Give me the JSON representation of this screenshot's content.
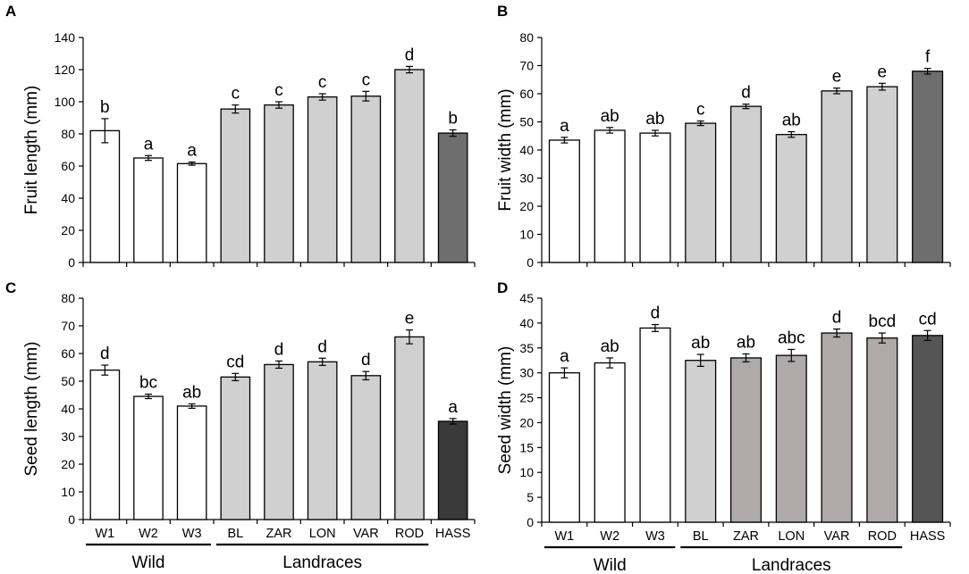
{
  "chart_data": [
    {
      "type": "bar",
      "panel": "A",
      "ylabel": "Fruit length (mm)",
      "ylim": [
        0,
        140
      ],
      "yticks": [
        0,
        20,
        40,
        60,
        80,
        100,
        120,
        140
      ],
      "categories": [
        "W1",
        "W2",
        "W3",
        "BL",
        "ZAR",
        "LON",
        "VAR",
        "ROD",
        "HASS"
      ],
      "values": [
        82,
        65,
        61.5,
        95.5,
        98,
        103,
        103.5,
        120,
        80.5
      ],
      "errors": [
        7.5,
        1.5,
        1,
        2.5,
        2,
        2,
        3,
        2,
        2
      ],
      "letters": [
        "b",
        "a",
        "a",
        "c",
        "c",
        "c",
        "c",
        "d",
        "b"
      ],
      "fill": [
        "#ffffff",
        "#ffffff",
        "#ffffff",
        "#d0d0d0",
        "#d0d0d0",
        "#d0d0d0",
        "#d0d0d0",
        "#d0d0d0",
        "#6e6e6e"
      ],
      "show_xticks": false,
      "groups": [
        {
          "label": "Wild",
          "from": 0,
          "to": 2
        },
        {
          "label": "Landraces",
          "from": 3,
          "to": 7
        }
      ],
      "show_groups": false
    },
    {
      "type": "bar",
      "panel": "B",
      "ylabel": "Fruit width (mm)",
      "ylim": [
        0,
        80
      ],
      "yticks": [
        0,
        10,
        20,
        30,
        40,
        50,
        60,
        70,
        80
      ],
      "categories": [
        "W1",
        "W2",
        "W3",
        "BL",
        "ZAR",
        "LON",
        "VAR",
        "ROD",
        "HASS"
      ],
      "values": [
        43.5,
        47,
        46,
        49.5,
        55.5,
        45.5,
        61,
        62.5,
        68
      ],
      "errors": [
        1,
        1,
        1,
        0.8,
        0.8,
        1,
        1,
        1.2,
        1
      ],
      "letters": [
        "a",
        "ab",
        "ab",
        "c",
        "d",
        "ab",
        "e",
        "e",
        "f"
      ],
      "fill": [
        "#ffffff",
        "#ffffff",
        "#ffffff",
        "#d0d0d0",
        "#d0d0d0",
        "#d0d0d0",
        "#d0d0d0",
        "#d0d0d0",
        "#6e6e6e"
      ],
      "show_xticks": false,
      "groups": [
        {
          "label": "Wild",
          "from": 0,
          "to": 2
        },
        {
          "label": "Landraces",
          "from": 3,
          "to": 7
        }
      ],
      "show_groups": false
    },
    {
      "type": "bar",
      "panel": "C",
      "ylabel": "Seed length (mm)",
      "ylim": [
        0,
        80
      ],
      "yticks": [
        0,
        10,
        20,
        30,
        40,
        50,
        60,
        70,
        80
      ],
      "categories": [
        "W1",
        "W2",
        "W3",
        "BL",
        "ZAR",
        "LON",
        "VAR",
        "ROD",
        "HASS"
      ],
      "values": [
        54,
        44.5,
        41,
        51.5,
        56,
        57,
        52,
        66,
        35.5
      ],
      "errors": [
        1.8,
        0.8,
        0.8,
        1.3,
        1.3,
        1.3,
        1.5,
        2.5,
        1
      ],
      "letters": [
        "d",
        "bc",
        "ab",
        "cd",
        "d",
        "d",
        "d",
        "e",
        "a"
      ],
      "fill": [
        "#ffffff",
        "#ffffff",
        "#ffffff",
        "#d0d0d0",
        "#d0d0d0",
        "#d0d0d0",
        "#d0d0d0",
        "#d0d0d0",
        "#3a3a3a"
      ],
      "show_xticks": true,
      "groups": [
        {
          "label": "Wild",
          "from": 0,
          "to": 2
        },
        {
          "label": "Landraces",
          "from": 3,
          "to": 7
        }
      ],
      "show_groups": true
    },
    {
      "type": "bar",
      "panel": "D",
      "ylabel": "Seed width (mm)",
      "ylim": [
        0,
        45
      ],
      "yticks": [
        0,
        5,
        10,
        15,
        20,
        25,
        30,
        35,
        40,
        45
      ],
      "categories": [
        "W1",
        "W2",
        "W3",
        "BL",
        "ZAR",
        "LON",
        "VAR",
        "ROD",
        "HASS"
      ],
      "values": [
        30,
        32,
        39,
        32.5,
        33,
        33.5,
        38,
        37,
        37.5
      ],
      "errors": [
        1,
        1,
        0.7,
        1.2,
        0.8,
        1.2,
        0.8,
        1,
        1
      ],
      "letters": [
        "a",
        "ab",
        "d",
        "ab",
        "ab",
        "abc",
        "d",
        "bcd",
        "cd"
      ],
      "fill": [
        "#ffffff",
        "#ffffff",
        "#ffffff",
        "#d0d0d0",
        "#afa9a9",
        "#afa9a9",
        "#afa9a9",
        "#afa9a9",
        "#555555"
      ],
      "show_xticks": true,
      "groups": [
        {
          "label": "Wild",
          "from": 0,
          "to": 2
        },
        {
          "label": "Landraces",
          "from": 3,
          "to": 7
        }
      ],
      "show_groups": true
    }
  ]
}
